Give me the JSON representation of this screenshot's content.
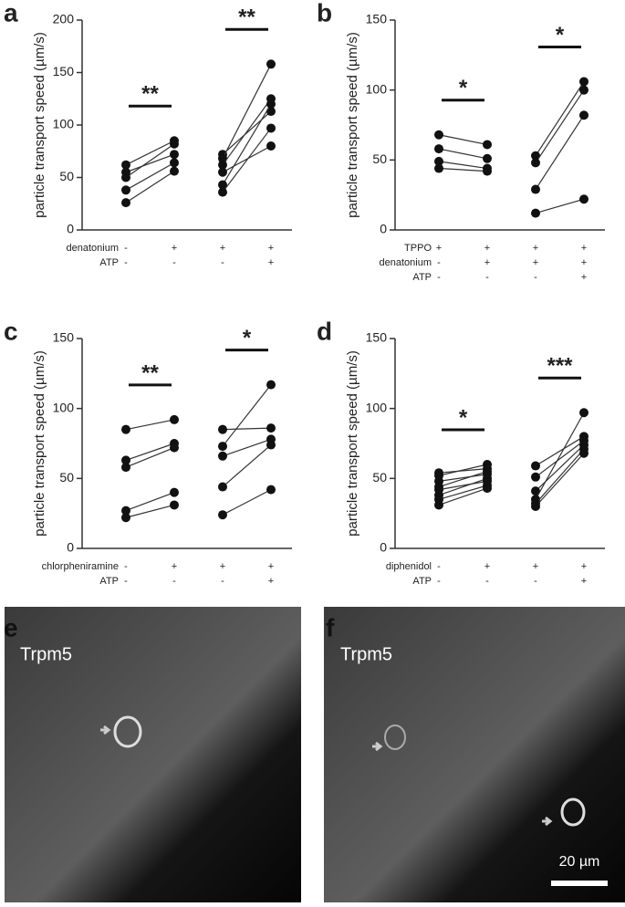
{
  "chart_data": [
    {
      "type": "paired",
      "panel": "a",
      "ylabel": "particle transport speed (µm/s)",
      "ylim": [
        0,
        200
      ],
      "yticks": [
        0,
        50,
        100,
        150,
        200
      ],
      "color": "#333333",
      "conditions": [
        {
          "label": "denatonium",
          "marks": [
            "-",
            "+",
            "+",
            "+"
          ]
        },
        {
          "label": "ATP",
          "marks": [
            "-",
            "-",
            "-",
            "+"
          ]
        }
      ],
      "annotations": [
        "**",
        "**"
      ],
      "series": [
        {
          "values": [
            62,
            85,
            null,
            null
          ]
        },
        {
          "values": [
            55,
            72,
            null,
            null
          ]
        },
        {
          "values": [
            50,
            82,
            null,
            null
          ]
        },
        {
          "values": [
            38,
            64,
            null,
            null
          ]
        },
        {
          "values": [
            26,
            56,
            null,
            null
          ]
        },
        {
          "values": [
            null,
            null,
            72,
            113
          ]
        },
        {
          "values": [
            null,
            null,
            68,
            158
          ]
        },
        {
          "values": [
            null,
            null,
            62,
            125
          ]
        },
        {
          "values": [
            null,
            null,
            55,
            80
          ]
        },
        {
          "values": [
            null,
            null,
            43,
            120
          ]
        },
        {
          "values": [
            null,
            null,
            36,
            97
          ]
        }
      ]
    },
    {
      "type": "paired",
      "panel": "b",
      "ylabel": "particle transport speed (µm/s)",
      "ylim": [
        0,
        150
      ],
      "yticks": [
        0,
        50,
        100,
        150
      ],
      "color": "#333333",
      "conditions": [
        {
          "label": "TPPO",
          "marks": [
            "+",
            "+",
            "+",
            "+"
          ]
        },
        {
          "label": "denatonium",
          "marks": [
            "-",
            "+",
            "+",
            "+"
          ]
        },
        {
          "label": "ATP",
          "marks": [
            "-",
            "-",
            "-",
            "+"
          ]
        }
      ],
      "annotations": [
        "*",
        "*"
      ],
      "series": [
        {
          "values": [
            68,
            61,
            null,
            null
          ]
        },
        {
          "values": [
            58,
            51,
            null,
            null
          ]
        },
        {
          "values": [
            49,
            44,
            null,
            null
          ]
        },
        {
          "values": [
            44,
            42,
            null,
            null
          ]
        },
        {
          "values": [
            null,
            null,
            53,
            106
          ]
        },
        {
          "values": [
            null,
            null,
            48,
            100
          ]
        },
        {
          "values": [
            null,
            null,
            29,
            82
          ]
        },
        {
          "values": [
            null,
            null,
            12,
            22
          ]
        }
      ]
    },
    {
      "type": "paired",
      "panel": "c",
      "ylabel": "particle transport speed (µm/s)",
      "ylim": [
        0,
        150
      ],
      "yticks": [
        0,
        50,
        100,
        150
      ],
      "color": "#333333",
      "conditions": [
        {
          "label": "chlorpheniramine",
          "marks": [
            "-",
            "+",
            "+",
            "+"
          ]
        },
        {
          "label": "ATP",
          "marks": [
            "-",
            "-",
            "-",
            "+"
          ]
        }
      ],
      "annotations": [
        "**",
        "*"
      ],
      "series": [
        {
          "values": [
            85,
            92,
            null,
            null
          ]
        },
        {
          "values": [
            63,
            75,
            null,
            null
          ]
        },
        {
          "values": [
            58,
            72,
            null,
            null
          ]
        },
        {
          "values": [
            27,
            40,
            null,
            null
          ]
        },
        {
          "values": [
            22,
            31,
            null,
            null
          ]
        },
        {
          "values": [
            null,
            null,
            85,
            86
          ]
        },
        {
          "values": [
            null,
            null,
            73,
            117
          ]
        },
        {
          "values": [
            null,
            null,
            66,
            78
          ]
        },
        {
          "values": [
            null,
            null,
            44,
            74
          ]
        },
        {
          "values": [
            null,
            null,
            24,
            42
          ]
        }
      ]
    },
    {
      "type": "paired",
      "panel": "d",
      "ylabel": "particle transport speed (µm/s)",
      "ylim": [
        0,
        150
      ],
      "yticks": [
        0,
        50,
        100,
        150
      ],
      "color": "#333333",
      "conditions": [
        {
          "label": "diphenidol",
          "marks": [
            "-",
            "+",
            "+",
            "+"
          ]
        },
        {
          "label": "ATP",
          "marks": [
            "-",
            "-",
            "-",
            "+"
          ]
        }
      ],
      "annotations": [
        "*",
        "***"
      ],
      "series": [
        {
          "values": [
            54,
            57,
            null,
            null
          ]
        },
        {
          "values": [
            52,
            60,
            null,
            null
          ]
        },
        {
          "values": [
            48,
            53,
            null,
            null
          ]
        },
        {
          "values": [
            44,
            55,
            null,
            null
          ]
        },
        {
          "values": [
            42,
            48,
            null,
            null
          ]
        },
        {
          "values": [
            38,
            50,
            null,
            null
          ]
        },
        {
          "values": [
            35,
            45,
            null,
            null
          ]
        },
        {
          "values": [
            31,
            43,
            null,
            null
          ]
        },
        {
          "values": [
            null,
            null,
            59,
            80
          ]
        },
        {
          "values": [
            null,
            null,
            51,
            77
          ]
        },
        {
          "values": [
            null,
            null,
            41,
            74
          ]
        },
        {
          "values": [
            null,
            null,
            35,
            97
          ]
        },
        {
          "values": [
            null,
            null,
            32,
            71
          ]
        },
        {
          "values": [
            null,
            null,
            30,
            68
          ]
        }
      ]
    }
  ],
  "images": [
    {
      "panel": "e",
      "label": "Trpm5"
    },
    {
      "panel": "f",
      "label": "Trpm5",
      "scale_bar": "20 µm"
    }
  ]
}
